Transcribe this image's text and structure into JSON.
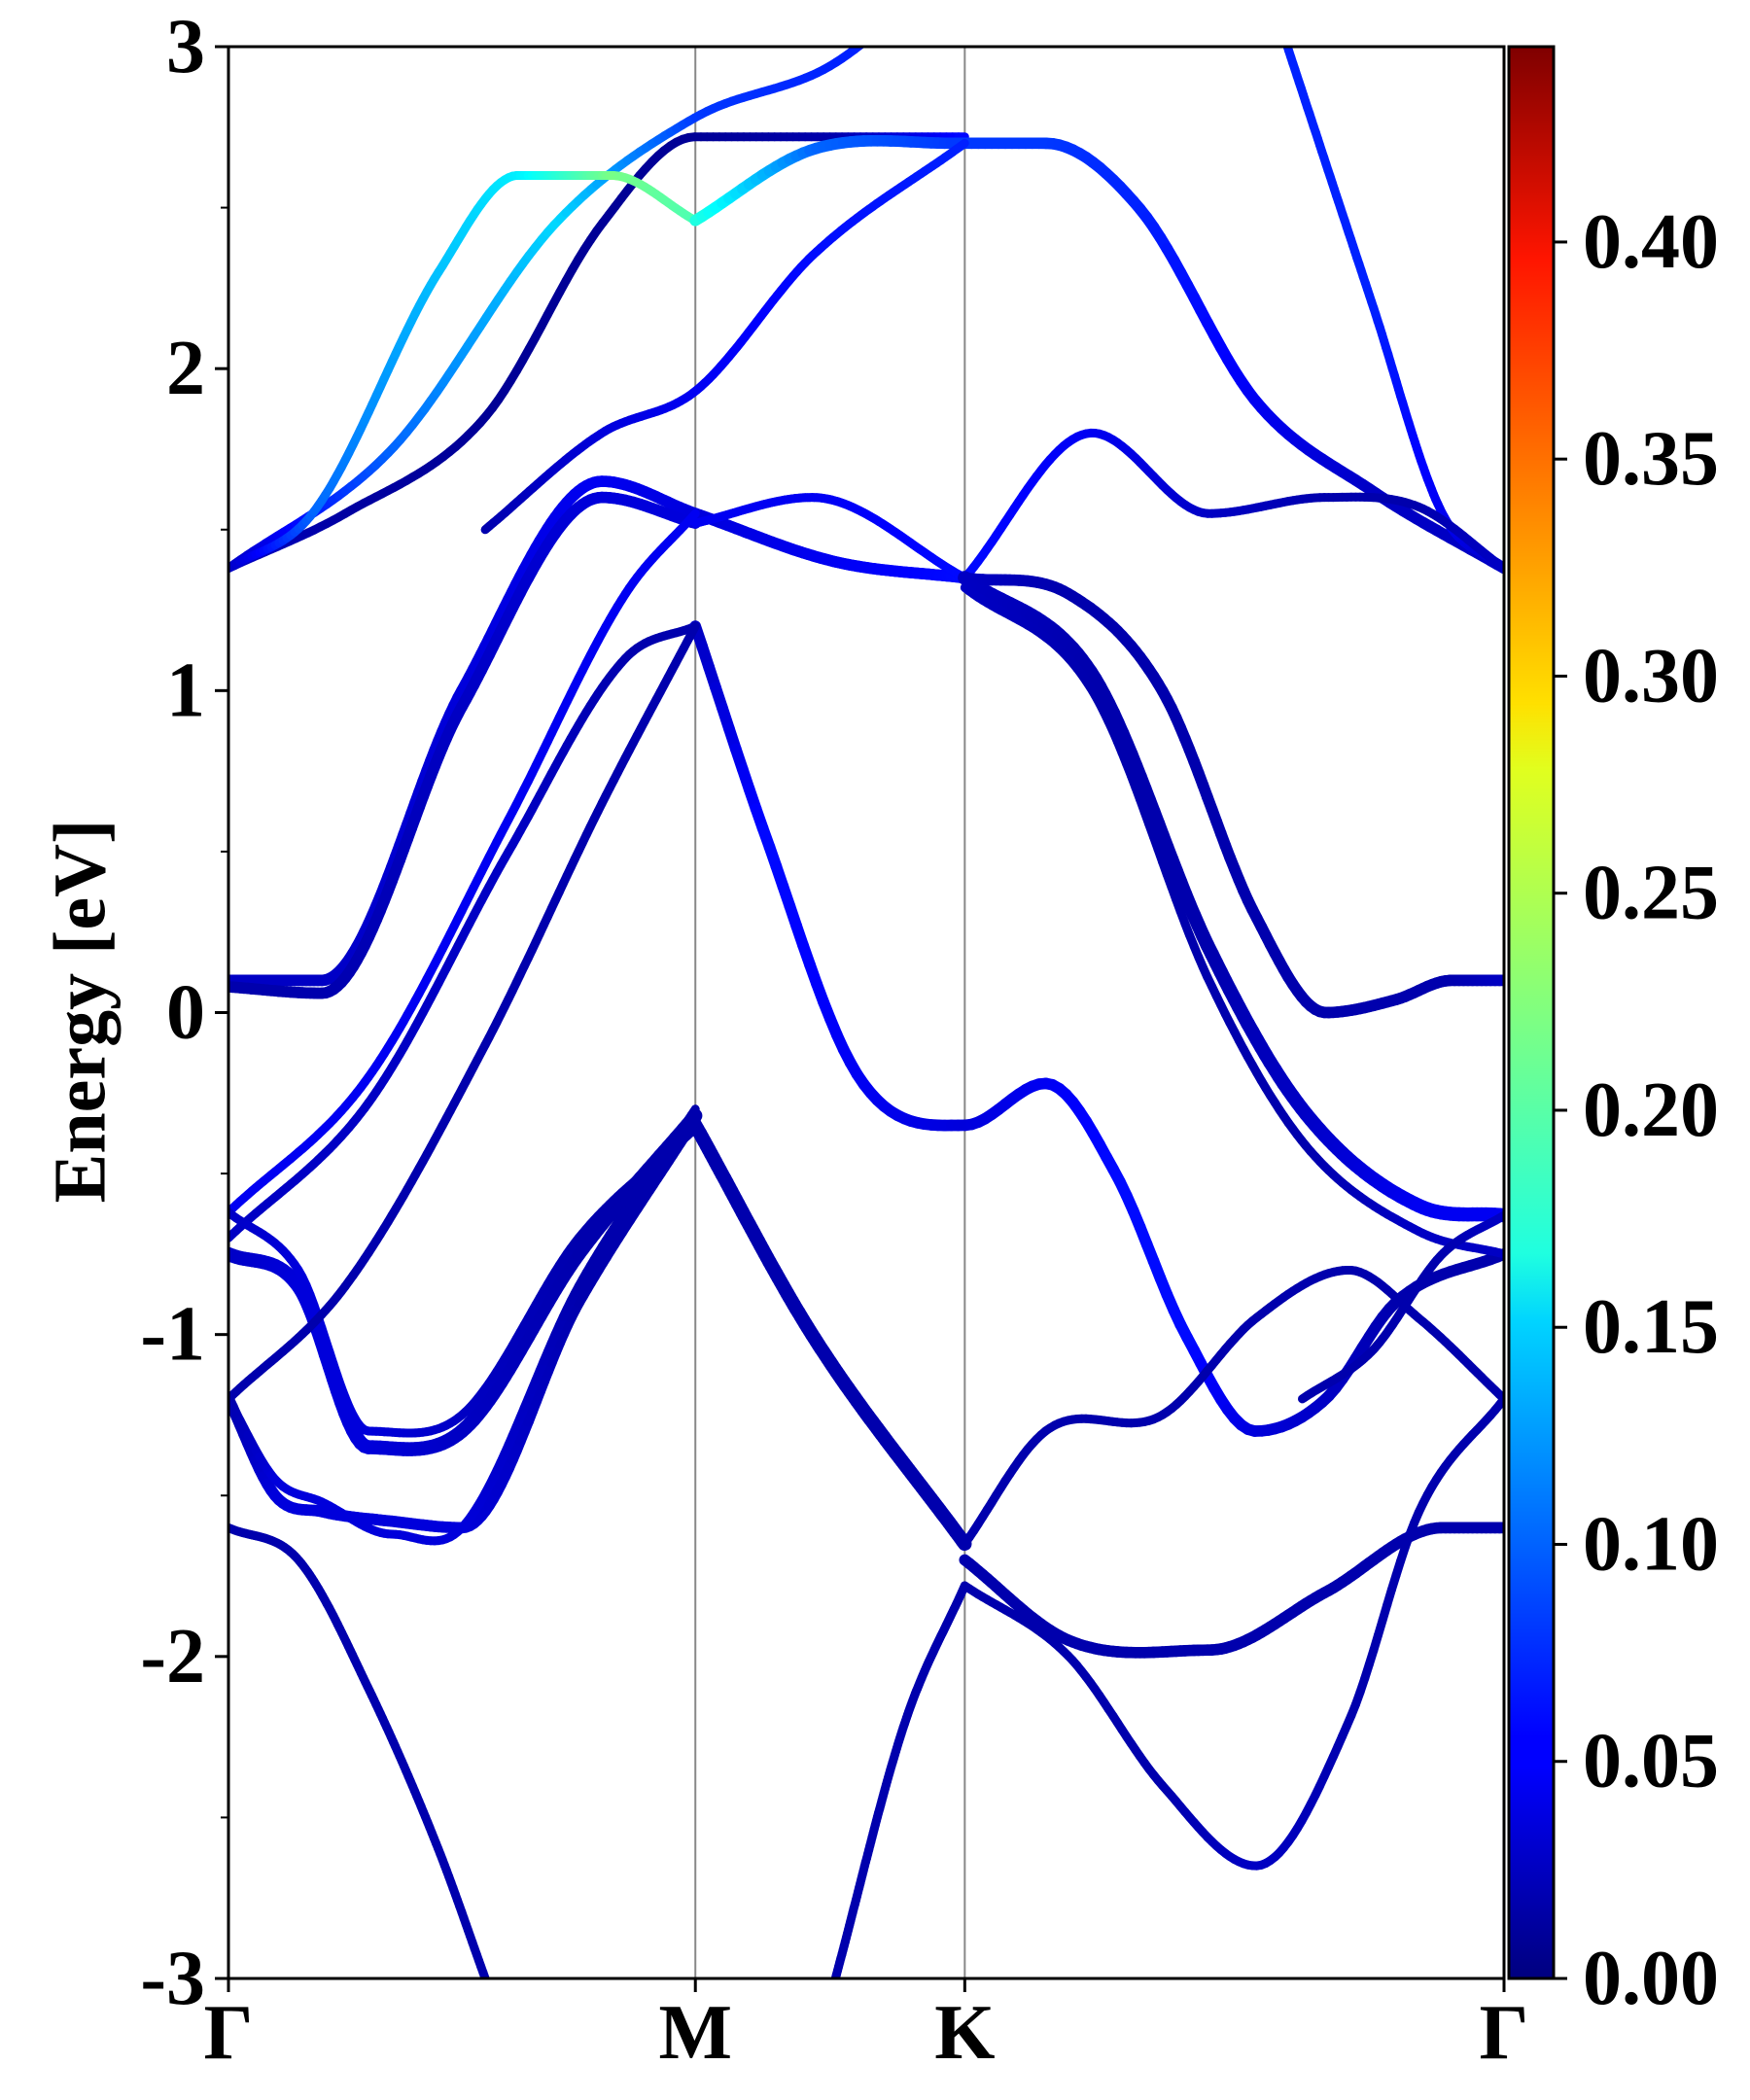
{
  "chart_data": {
    "type": "line",
    "ylabel": "Energy [eV]",
    "xlabel": "",
    "title": "",
    "ylim": [
      -3,
      3
    ],
    "yticks": [
      -3,
      -2,
      -1,
      0,
      1,
      2,
      3
    ],
    "ytick_labels": [
      "-3",
      "-2",
      "-1",
      "0",
      "1",
      "2",
      "3"
    ],
    "kpath": {
      "labels": [
        "Γ",
        "M",
        "K",
        "Γ"
      ],
      "positions": [
        0,
        1,
        1.577,
        2.732
      ]
    },
    "colorbar": {
      "colormap": "jet",
      "range": [
        0,
        0.445
      ],
      "ticks": [
        0.0,
        0.05,
        0.1,
        0.15,
        0.2,
        0.25,
        0.3,
        0.35,
        0.4
      ],
      "tick_labels": [
        "0.00",
        "0.05",
        "0.10",
        "0.15",
        "0.20",
        "0.25",
        "0.30",
        "0.35",
        "0.40"
      ]
    },
    "grid": false,
    "series": [
      {
        "x": [
          0,
          0.25,
          0.55,
          0.8,
          1.0,
          1.3,
          1.577
        ],
        "y": [
          1.38,
          1.55,
          1.85,
          2.45,
          2.72,
          2.72,
          2.72
        ],
        "weight": [
          0.03,
          0.015,
          0.01,
          0.01,
          0.01,
          0.02,
          0.06
        ],
        "width": 1.0
      },
      {
        "x": [
          0,
          0.35,
          0.7,
          1.0,
          1.3,
          1.577
        ],
        "y": [
          1.38,
          1.75,
          2.45,
          2.78,
          2.95,
          3.3
        ],
        "weight": [
          0.03,
          0.1,
          0.15,
          0.08,
          0.07,
          0.07
        ],
        "width": 1.0
      },
      {
        "x": [
          0,
          0.18,
          0.45,
          0.62,
          0.82,
          1.0
        ],
        "y": [
          1.38,
          1.55,
          2.3,
          2.6,
          2.6,
          2.46
        ],
        "weight": [
          0.03,
          0.1,
          0.14,
          0.16,
          0.22,
          0.2
        ],
        "width": 1.0
      },
      {
        "x": [
          1.0,
          1.25,
          1.55,
          1.75,
          1.95,
          2.2,
          2.45,
          2.732
        ],
        "y": [
          2.46,
          2.68,
          2.7,
          2.7,
          2.5,
          1.9,
          1.62,
          1.38
        ],
        "weight": [
          0.18,
          0.1,
          0.08,
          0.08,
          0.07,
          0.05,
          0.03,
          0.03
        ],
        "width": 1.3
      },
      {
        "x": [
          0.55,
          0.8,
          1.0,
          1.25,
          1.577
        ],
        "y": [
          1.5,
          1.8,
          1.93,
          2.35,
          2.7
        ],
        "weight": [
          0.02,
          0.04,
          0.05,
          0.06,
          0.07
        ],
        "width": 1.0
      },
      {
        "x": [
          2.2,
          2.45,
          2.6,
          2.732
        ],
        "y": [
          3.3,
          2.2,
          1.55,
          1.38
        ],
        "weight": [
          0.07,
          0.07,
          0.05,
          0.03
        ],
        "width": 1.0
      },
      {
        "x": [
          1.577,
          1.85,
          2.1,
          2.35,
          2.55,
          2.732
        ],
        "y": [
          1.35,
          1.8,
          1.55,
          1.6,
          1.57,
          1.38
        ],
        "weight": [
          0.06,
          0.05,
          0.03,
          0.02,
          0.02,
          0.03
        ],
        "width": 1.0
      },
      {
        "x": [
          0,
          0.2,
          0.5,
          0.8,
          1.0
        ],
        "y": [
          0.1,
          0.1,
          1.0,
          1.65,
          1.55
        ],
        "weight": [
          0.03,
          0.03,
          0.04,
          0.05,
          0.04
        ],
        "width": 1.3
      },
      {
        "x": [
          0,
          0.2,
          0.5,
          0.8,
          1.0
        ],
        "y": [
          0.08,
          0.06,
          0.95,
          1.6,
          1.52
        ],
        "weight": [
          0.02,
          0.02,
          0.03,
          0.04,
          0.04
        ],
        "width": 1.3
      },
      {
        "x": [
          1.0,
          1.3,
          1.577
        ],
        "y": [
          1.55,
          1.4,
          1.35
        ],
        "weight": [
          0.04,
          0.05,
          0.06
        ],
        "width": 1.3
      },
      {
        "x": [
          1.0,
          1.25,
          1.577
        ],
        "y": [
          1.52,
          1.6,
          1.35
        ],
        "weight": [
          0.05,
          0.05,
          0.06
        ],
        "width": 1.0
      },
      {
        "x": [
          0,
          0.3,
          0.6,
          0.85,
          1.0
        ],
        "y": [
          -0.62,
          -0.2,
          0.6,
          1.3,
          1.55
        ],
        "weight": [
          0.05,
          0.05,
          0.05,
          0.05,
          0.05
        ],
        "width": 1.0
      },
      {
        "x": [
          0,
          0.3,
          0.6,
          0.85,
          1.0
        ],
        "y": [
          -0.7,
          -0.28,
          0.5,
          1.1,
          1.2
        ],
        "weight": [
          0.03,
          0.03,
          0.03,
          0.02,
          0.02
        ],
        "width": 1.0
      },
      {
        "x": [
          1.0,
          1.15,
          1.35,
          1.577,
          1.75,
          1.9,
          2.05,
          2.2,
          2.35,
          2.5,
          2.732
        ],
        "y": [
          1.2,
          0.55,
          -0.2,
          -0.35,
          -0.22,
          -0.5,
          -1.0,
          -1.3,
          -1.2,
          -0.9,
          -0.75
        ],
        "weight": [
          0.03,
          0.06,
          0.05,
          0.04,
          0.05,
          0.06,
          0.06,
          0.04,
          0.03,
          0.02,
          0.02
        ],
        "width": 1.3
      },
      {
        "x": [
          1.577,
          1.85,
          2.1,
          2.3,
          2.55,
          2.732
        ],
        "y": [
          1.35,
          1.05,
          0.2,
          -0.3,
          -0.6,
          -0.63
        ],
        "weight": [
          0.03,
          0.02,
          0.02,
          0.03,
          0.05,
          0.05
        ],
        "width": 1.6
      },
      {
        "x": [
          1.577,
          1.85,
          2.1,
          2.3,
          2.55,
          2.732
        ],
        "y": [
          1.32,
          1.0,
          0.1,
          -0.4,
          -0.68,
          -0.75
        ],
        "weight": [
          0.03,
          0.02,
          0.02,
          0.02,
          0.03,
          0.03
        ],
        "width": 1.0
      },
      {
        "x": [
          1.577,
          1.8,
          2.0,
          2.2,
          2.35,
          2.5,
          2.62,
          2.732
        ],
        "y": [
          1.35,
          1.3,
          1.0,
          0.3,
          0.0,
          0.04,
          0.1,
          0.1
        ],
        "weight": [
          0.03,
          0.02,
          0.02,
          0.02,
          0.02,
          0.02,
          0.02,
          0.03
        ],
        "width": 1.3
      },
      {
        "x": [
          0,
          0.15,
          0.3,
          0.5,
          0.75,
          1.0
        ],
        "y": [
          -0.75,
          -0.85,
          -1.35,
          -1.3,
          -0.75,
          -0.32
        ],
        "weight": [
          0.03,
          0.04,
          0.04,
          0.03,
          0.02,
          0.02
        ],
        "width": 1.6
      },
      {
        "x": [
          0,
          0.15,
          0.3,
          0.5,
          0.75,
          1.0
        ],
        "y": [
          -0.62,
          -0.8,
          -1.3,
          -1.25,
          -0.7,
          -0.36
        ],
        "weight": [
          0.03,
          0.04,
          0.04,
          0.03,
          0.02,
          0.02
        ],
        "width": 1.0
      },
      {
        "x": [
          0,
          0.25,
          0.55,
          0.8,
          1.0
        ],
        "y": [
          -1.2,
          -0.85,
          -0.1,
          0.65,
          1.2
        ],
        "weight": [
          0.02,
          0.02,
          0.02,
          0.02,
          0.02
        ],
        "width": 1.0
      },
      {
        "x": [
          1.0,
          1.25,
          1.577
        ],
        "y": [
          -0.35,
          -1.0,
          -1.65
        ],
        "weight": [
          0.02,
          0.02,
          0.02
        ],
        "width": 1.6
      },
      {
        "x": [
          0,
          0.1,
          0.2,
          0.35,
          0.5,
          0.75,
          1.0
        ],
        "y": [
          -1.2,
          -1.5,
          -1.55,
          -1.58,
          -1.6,
          -0.9,
          -0.33
        ],
        "weight": [
          0.02,
          0.04,
          0.04,
          0.04,
          0.04,
          0.02,
          0.02
        ],
        "width": 1.3
      },
      {
        "x": [
          0,
          0.1,
          0.2,
          0.35,
          0.5,
          0.75,
          1.0
        ],
        "y": [
          -1.2,
          -1.45,
          -1.52,
          -1.62,
          -1.6,
          -0.85,
          -0.3
        ],
        "weight": [
          0.02,
          0.04,
          0.04,
          0.04,
          0.04,
          0.02,
          0.02
        ],
        "width": 1.0
      },
      {
        "x": [
          0,
          0.15,
          0.3,
          0.45,
          0.55
        ],
        "y": [
          -1.6,
          -1.7,
          -2.1,
          -2.6,
          -3.0
        ],
        "weight": [
          0.02,
          0.02,
          0.02,
          0.02,
          0.02
        ],
        "width": 1.0
      },
      {
        "x": [
          1.3,
          1.45,
          1.577
        ],
        "y": [
          -3.0,
          -2.2,
          -1.78
        ],
        "weight": [
          0.02,
          0.02,
          0.02
        ],
        "width": 1.0
      },
      {
        "x": [
          1.577,
          1.8,
          2.0,
          2.2,
          2.4,
          2.55,
          2.732
        ],
        "y": [
          -1.78,
          -2.0,
          -2.4,
          -2.65,
          -2.2,
          -1.55,
          -1.2
        ],
        "weight": [
          0.02,
          0.02,
          0.02,
          0.03,
          0.02,
          0.02,
          0.02
        ],
        "width": 1.0
      },
      {
        "x": [
          1.577,
          1.75,
          2.0,
          2.2,
          2.4,
          2.55,
          2.732
        ],
        "y": [
          -1.65,
          -1.3,
          -1.25,
          -0.95,
          -0.8,
          -0.95,
          -1.2
        ],
        "weight": [
          0.02,
          0.02,
          0.02,
          0.02,
          0.02,
          0.02,
          0.02
        ],
        "width": 1.0
      },
      {
        "x": [
          1.577,
          1.8,
          2.1,
          2.35,
          2.6,
          2.732
        ],
        "y": [
          -1.7,
          -1.95,
          -1.98,
          -1.8,
          -1.6,
          -1.6
        ],
        "weight": [
          0.02,
          0.02,
          0.02,
          0.02,
          0.02,
          0.02
        ],
        "width": 1.3
      },
      {
        "x": [
          2.3,
          2.45,
          2.6,
          2.732
        ],
        "y": [
          -1.2,
          -1.05,
          -0.75,
          -0.63
        ],
        "weight": [
          0.02,
          0.02,
          0.02,
          0.03
        ],
        "width": 1.0
      }
    ]
  }
}
